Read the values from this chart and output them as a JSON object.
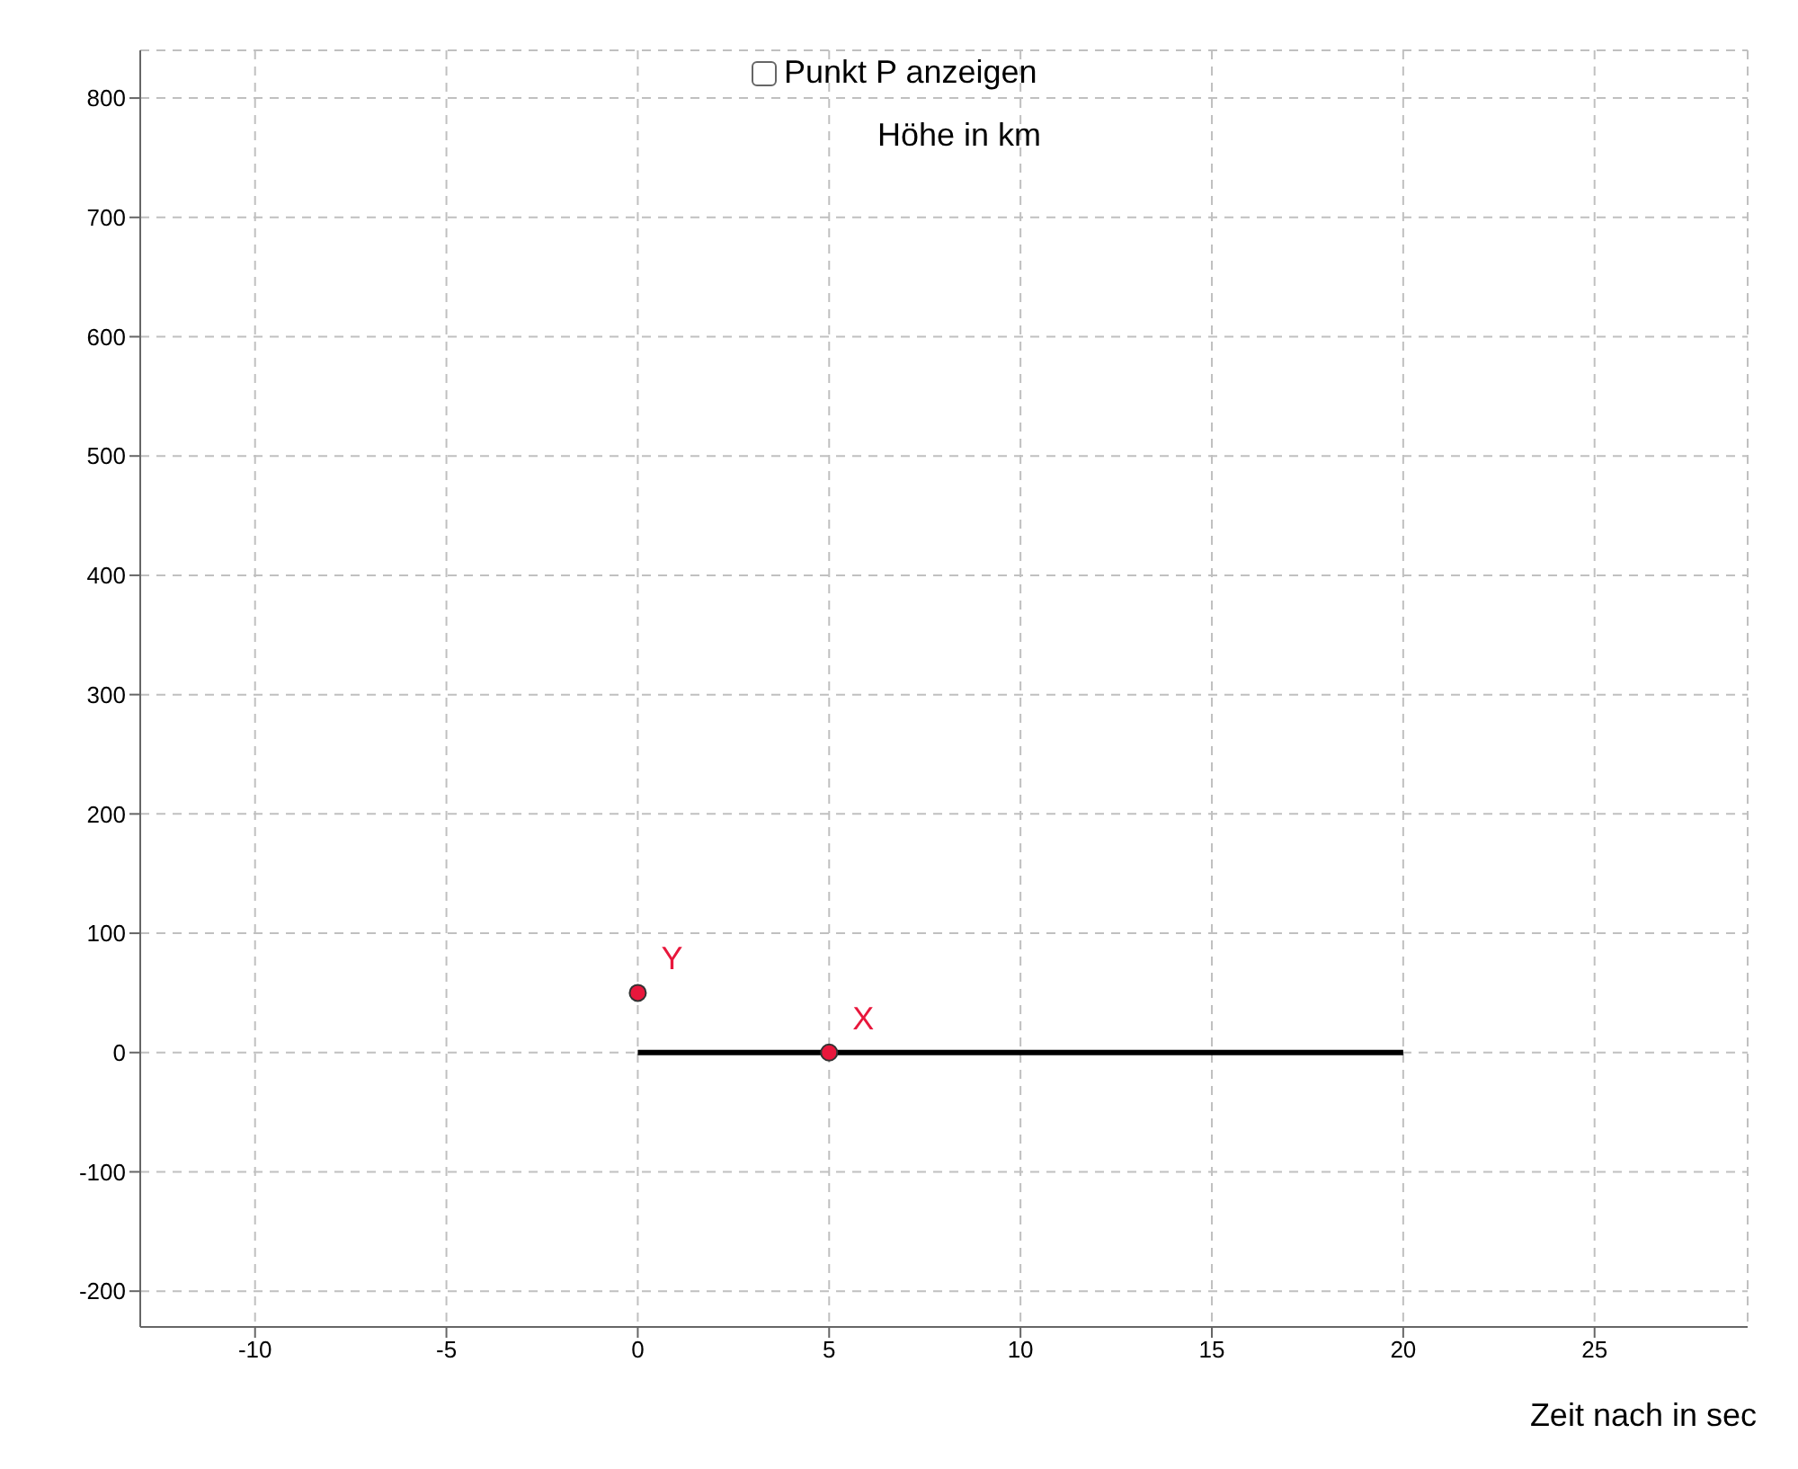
{
  "chart_data": {
    "type": "scatter",
    "xlabel": "Zeit nach in sec",
    "ylabel": "Höhe in km",
    "annotations": [
      "Punkt P anzeigen",
      {
        "text": "Y",
        "x": 0,
        "y": 50
      },
      {
        "text": "X",
        "x": 5,
        "y": 0
      }
    ],
    "xlim": [
      -13,
      29
    ],
    "ylim": [
      -230,
      840
    ],
    "xticks": [
      -10,
      -5,
      0,
      5,
      10,
      15,
      20,
      25
    ],
    "yticks": [
      -200,
      -100,
      0,
      100,
      200,
      300,
      400,
      500,
      600,
      700,
      800
    ],
    "grid": true,
    "marker": "circle",
    "series": [
      {
        "type": "line",
        "x": [
          0,
          20
        ],
        "values": [
          0,
          0
        ],
        "color": "#000000",
        "marker": "none"
      },
      {
        "x": [
          0,
          5
        ],
        "values": [
          50,
          0
        ],
        "color": "#e8173c"
      }
    ]
  }
}
